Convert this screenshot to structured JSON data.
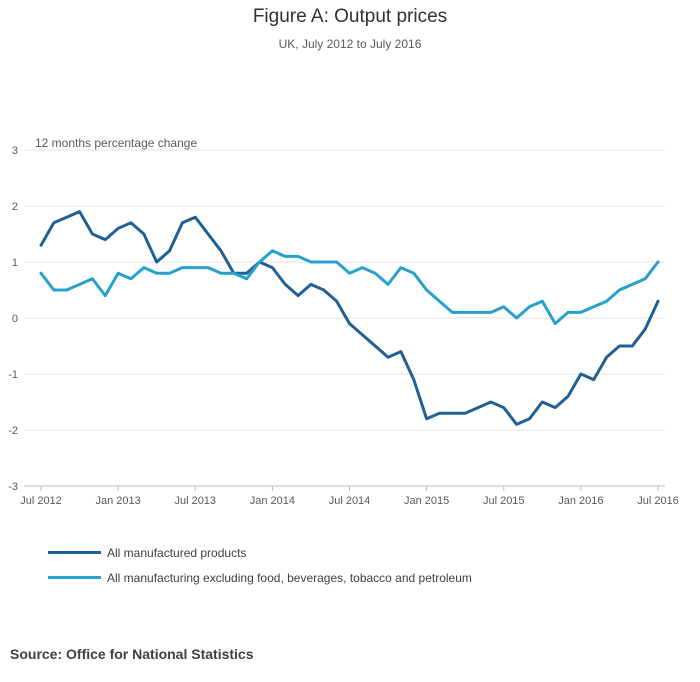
{
  "chart_data": {
    "type": "line",
    "title": "Figure A: Output prices",
    "subtitle": "UK, July 2012 to July 2016",
    "ylabel": "12 months percentage change",
    "ylim": [
      -3,
      3
    ],
    "yticks": [
      3,
      2,
      1,
      0,
      -1,
      -2,
      -3
    ],
    "xticks": [
      {
        "label": "Jul 2012",
        "index": 0
      },
      {
        "label": "Jan 2013",
        "index": 6
      },
      {
        "label": "Jul 2013",
        "index": 12
      },
      {
        "label": "Jan 2014",
        "index": 18
      },
      {
        "label": "Jul 2014",
        "index": 24
      },
      {
        "label": "Jan 2015",
        "index": 30
      },
      {
        "label": "Jul 2015",
        "index": 36
      },
      {
        "label": "Jan 2016",
        "index": 42
      },
      {
        "label": "Jul 2016",
        "index": 48
      }
    ],
    "series": [
      {
        "name": "All manufactured products",
        "color": "#206095",
        "values": [
          1.3,
          1.7,
          1.8,
          1.9,
          1.5,
          1.4,
          1.6,
          1.7,
          1.5,
          1.0,
          1.2,
          1.7,
          1.8,
          1.5,
          1.2,
          0.8,
          0.8,
          1.0,
          0.9,
          0.6,
          0.4,
          0.6,
          0.5,
          0.3,
          -0.1,
          -0.3,
          -0.5,
          -0.7,
          -0.6,
          -1.1,
          -1.8,
          -1.7,
          -1.7,
          -1.7,
          -1.6,
          -1.5,
          -1.6,
          -1.9,
          -1.8,
          -1.5,
          -1.6,
          -1.4,
          -1.0,
          -1.1,
          -0.7,
          -0.5,
          -0.5,
          -0.2,
          0.3
        ]
      },
      {
        "name": "All manufacturing excluding food, beverages, tobacco and petroleum",
        "color": "#27a0cc",
        "values": [
          0.8,
          0.5,
          0.5,
          0.6,
          0.7,
          0.4,
          0.8,
          0.7,
          0.9,
          0.8,
          0.8,
          0.9,
          0.9,
          0.9,
          0.8,
          0.8,
          0.7,
          1.0,
          1.2,
          1.1,
          1.1,
          1.0,
          1.0,
          1.0,
          0.8,
          0.9,
          0.8,
          0.6,
          0.9,
          0.8,
          0.5,
          0.3,
          0.1,
          0.1,
          0.1,
          0.1,
          0.2,
          0.0,
          0.2,
          0.3,
          -0.1,
          0.1,
          0.1,
          0.2,
          0.3,
          0.5,
          0.6,
          0.7,
          1.0
        ]
      }
    ]
  },
  "source": "Source: Office for National Statistics"
}
